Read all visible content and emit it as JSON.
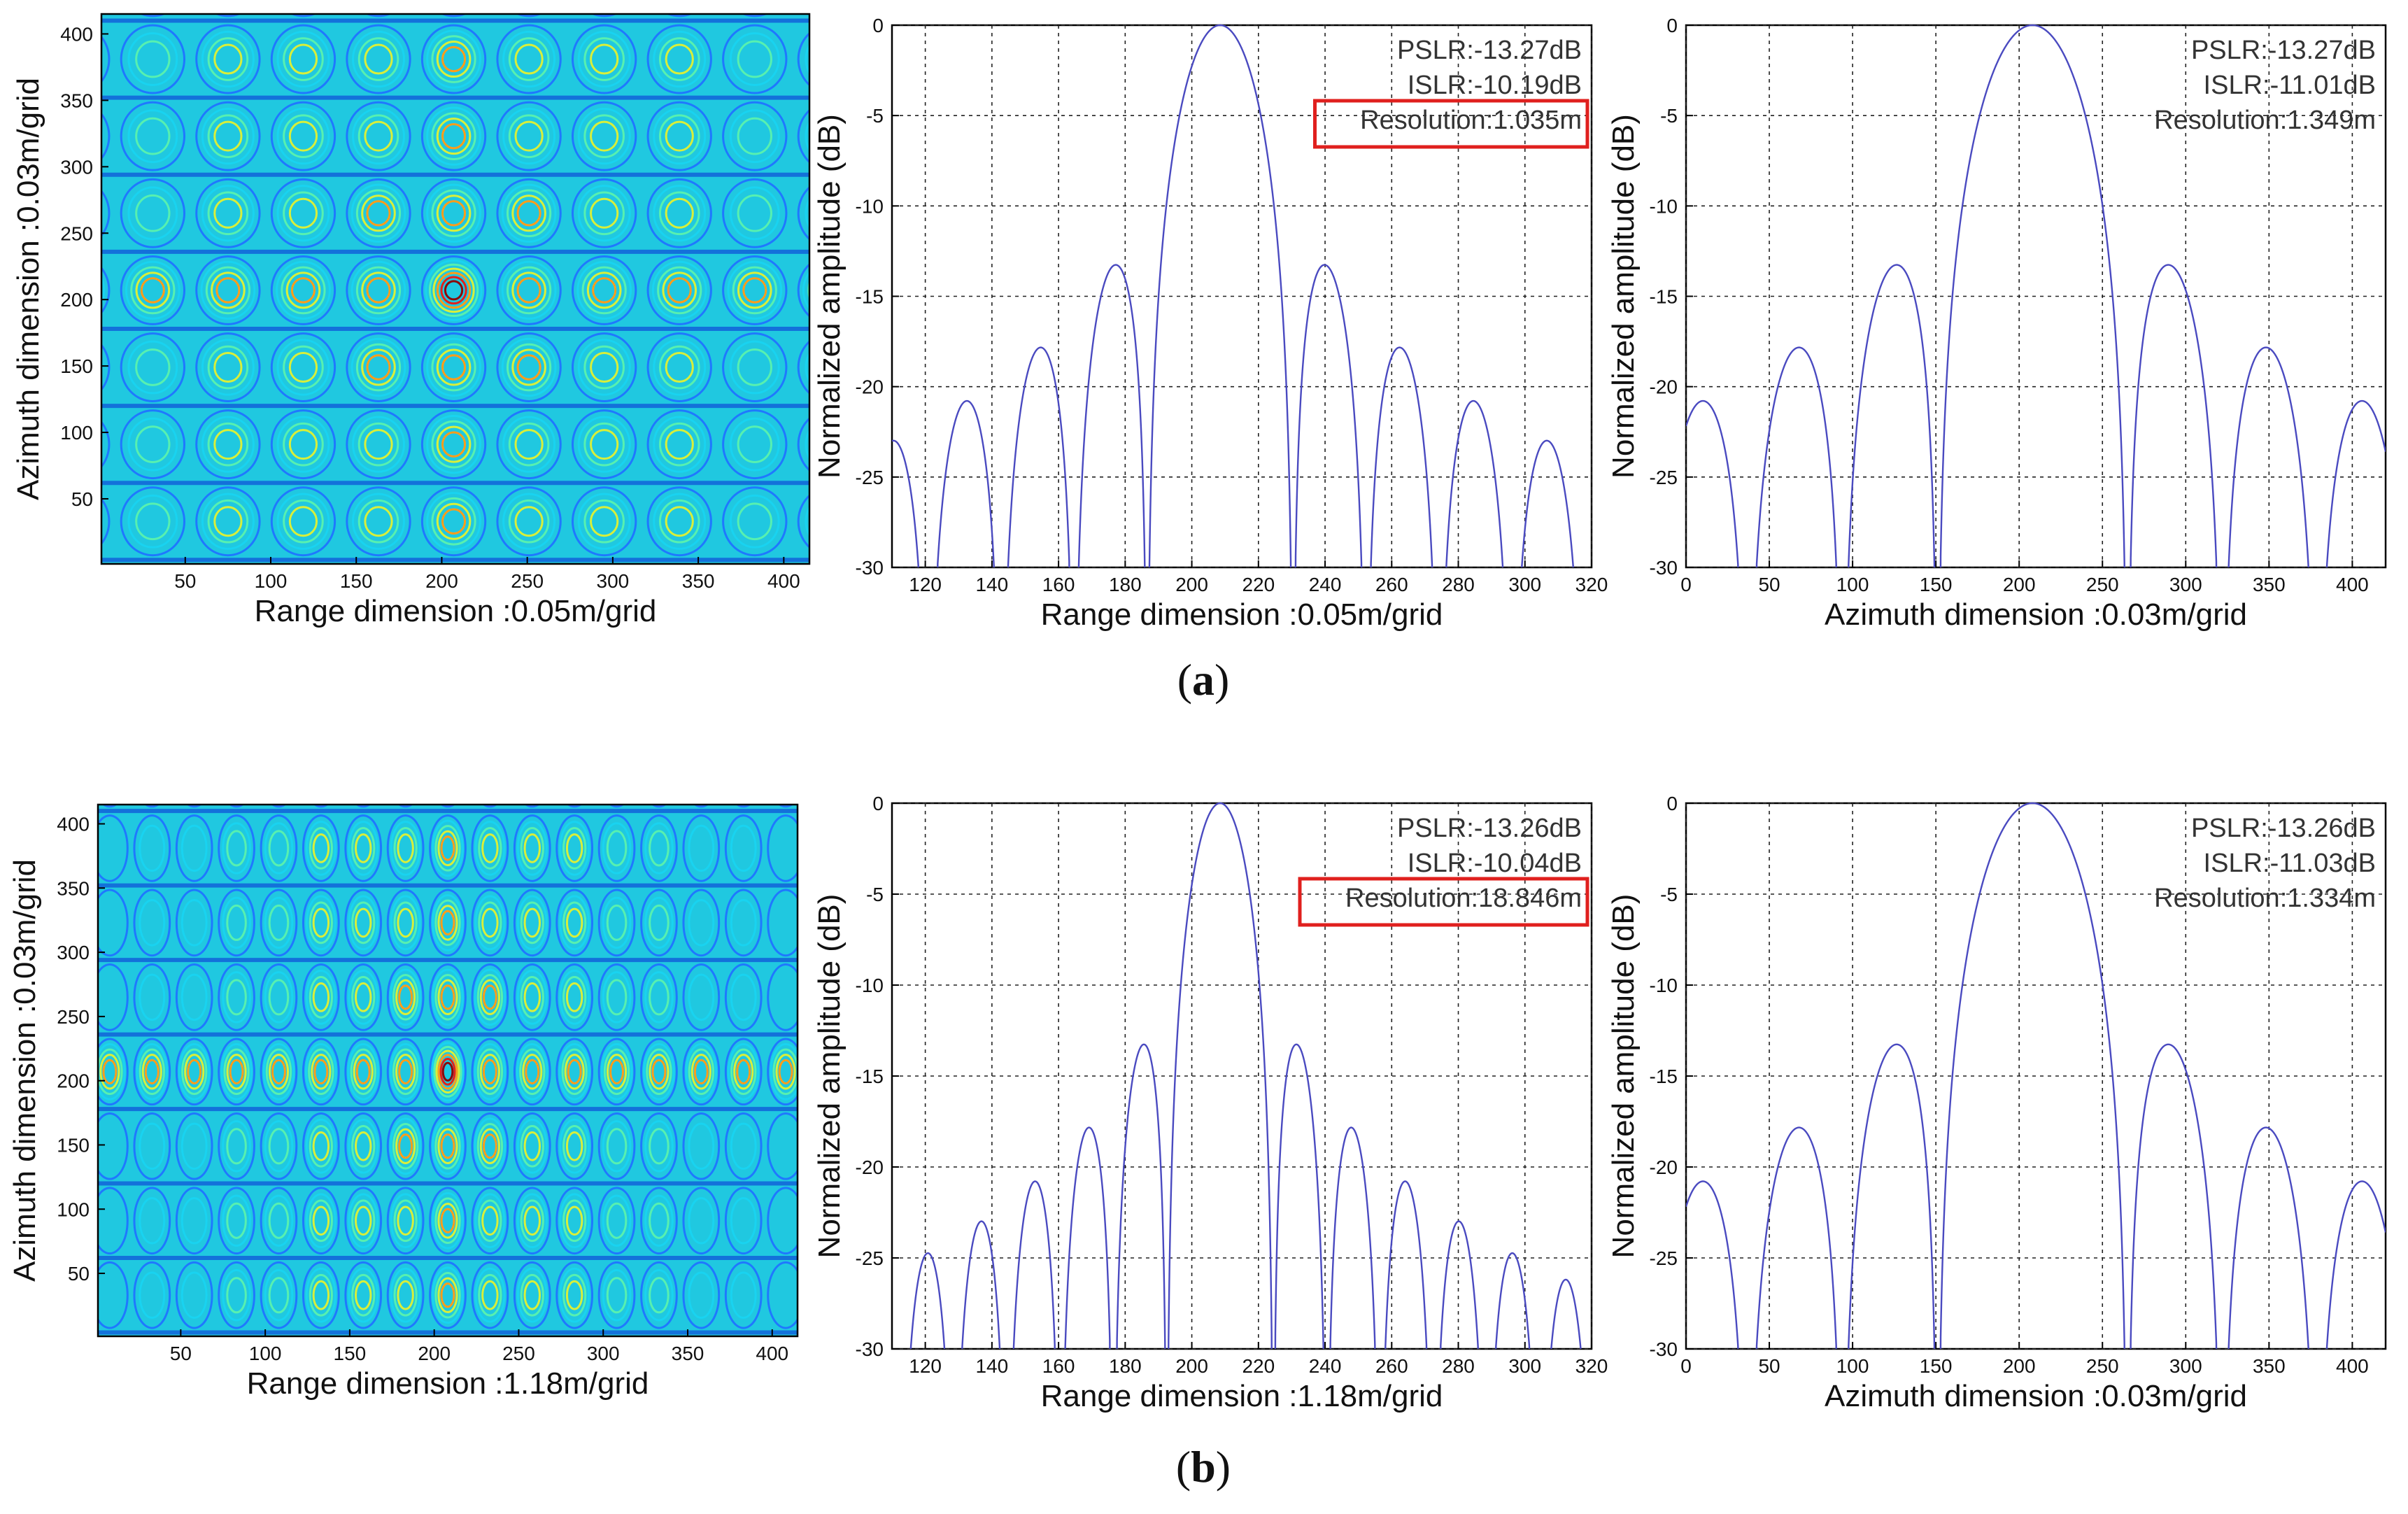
{
  "figure": {
    "caption_a_open": "(",
    "caption_a_letter": "a",
    "caption_a_close": ")",
    "caption_b_open": "(",
    "caption_b_letter": "b",
    "caption_b_close": ")"
  },
  "colors": {
    "line": "#4a4ac0",
    "grid": "#222222",
    "highlight": "#e0201e",
    "annotation": "#333333"
  },
  "chart_data": [
    {
      "id": "a-contour",
      "type": "heatmap",
      "title": "",
      "xlabel": "Range dimension :0.05m/grid",
      "ylabel": "Azimuth dimension :0.03m/grid",
      "xlim": [
        1,
        415
      ],
      "ylim": [
        1,
        415
      ],
      "xticks": [
        50,
        100,
        150,
        200,
        250,
        300,
        350,
        400
      ],
      "yticks": [
        50,
        100,
        150,
        200,
        250,
        300,
        350,
        400
      ],
      "x_period": 44,
      "y_period": 58,
      "center": [
        207,
        207
      ],
      "colormap": "jet-contour",
      "background": "#20c8e0"
    },
    {
      "id": "a-range",
      "type": "line",
      "xlabel": "Range dimension :0.05m/grid",
      "ylabel": "Normalized amplitude (dB)",
      "xlim": [
        110,
        320
      ],
      "ylim": [
        -30,
        0
      ],
      "xticks": [
        120,
        140,
        160,
        180,
        200,
        220,
        240,
        260,
        280,
        300,
        320
      ],
      "yticks": [
        0,
        -5,
        -10,
        -15,
        -20,
        -25,
        -30
      ],
      "grid": true,
      "series": [
        {
          "name": "sinc",
          "center": 208.5,
          "lobe_width": 21.9
        }
      ],
      "annotations": [
        "PSLR:-13.27dB",
        "ISLR:-10.19dB",
        "Resolution:1.035m"
      ],
      "highlighted_annotation": 2
    },
    {
      "id": "a-azimuth",
      "type": "line",
      "xlabel": "Azimuth dimension :0.03m/grid",
      "ylabel": "Normalized amplitude (dB)",
      "xlim": [
        0,
        420
      ],
      "ylim": [
        -30,
        0
      ],
      "xticks": [
        0,
        50,
        100,
        150,
        200,
        250,
        300,
        350,
        400
      ],
      "yticks": [
        0,
        -5,
        -10,
        -15,
        -20,
        -25,
        -30
      ],
      "grid": true,
      "series": [
        {
          "name": "sinc",
          "center": 208,
          "lobe_width": 57
        }
      ],
      "annotations": [
        "PSLR:-13.27dB",
        "ISLR:-11.01dB",
        "Resolution:1.349m"
      ],
      "highlighted_annotation": null
    },
    {
      "id": "b-contour",
      "type": "heatmap",
      "xlabel": "Range dimension :1.18m/grid",
      "ylabel": "Azimuth dimension :0.03m/grid",
      "xlim": [
        1,
        415
      ],
      "ylim": [
        1,
        415
      ],
      "xticks": [
        50,
        100,
        150,
        200,
        250,
        300,
        350,
        400
      ],
      "yticks": [
        50,
        100,
        150,
        200,
        250,
        300,
        350,
        400
      ],
      "x_period": 25,
      "y_period": 58,
      "center": [
        208,
        207
      ],
      "colormap": "jet-contour",
      "background": "#20c8e0"
    },
    {
      "id": "b-range",
      "type": "line",
      "xlabel": "Range dimension :1.18m/grid",
      "ylabel": "Normalized amplitude (dB)",
      "xlim": [
        110,
        320
      ],
      "ylim": [
        -30,
        0
      ],
      "xticks": [
        120,
        140,
        160,
        180,
        200,
        220,
        240,
        260,
        280,
        300,
        320
      ],
      "yticks": [
        0,
        -5,
        -10,
        -15,
        -20,
        -25,
        -30
      ],
      "grid": true,
      "series": [
        {
          "name": "sinc",
          "center": 208.5,
          "lobe_width": 16
        }
      ],
      "annotations": [
        "PSLR:-13.26dB",
        "ISLR:-10.04dB",
        "Resolution:18.846m"
      ],
      "highlighted_annotation": 2
    },
    {
      "id": "b-azimuth",
      "type": "line",
      "xlabel": "Azimuth dimension :0.03m/grid",
      "ylabel": "Normalized amplitude (dB)",
      "xlim": [
        0,
        420
      ],
      "ylim": [
        -30,
        0
      ],
      "xticks": [
        0,
        50,
        100,
        150,
        200,
        250,
        300,
        350,
        400
      ],
      "yticks": [
        0,
        -5,
        -10,
        -15,
        -20,
        -25,
        -30
      ],
      "grid": true,
      "series": [
        {
          "name": "sinc",
          "center": 208,
          "lobe_width": 57
        }
      ],
      "annotations": [
        "PSLR:-13.26dB",
        "ISLR:-11.03dB",
        "Resolution:1.334m"
      ],
      "highlighted_annotation": null
    }
  ]
}
